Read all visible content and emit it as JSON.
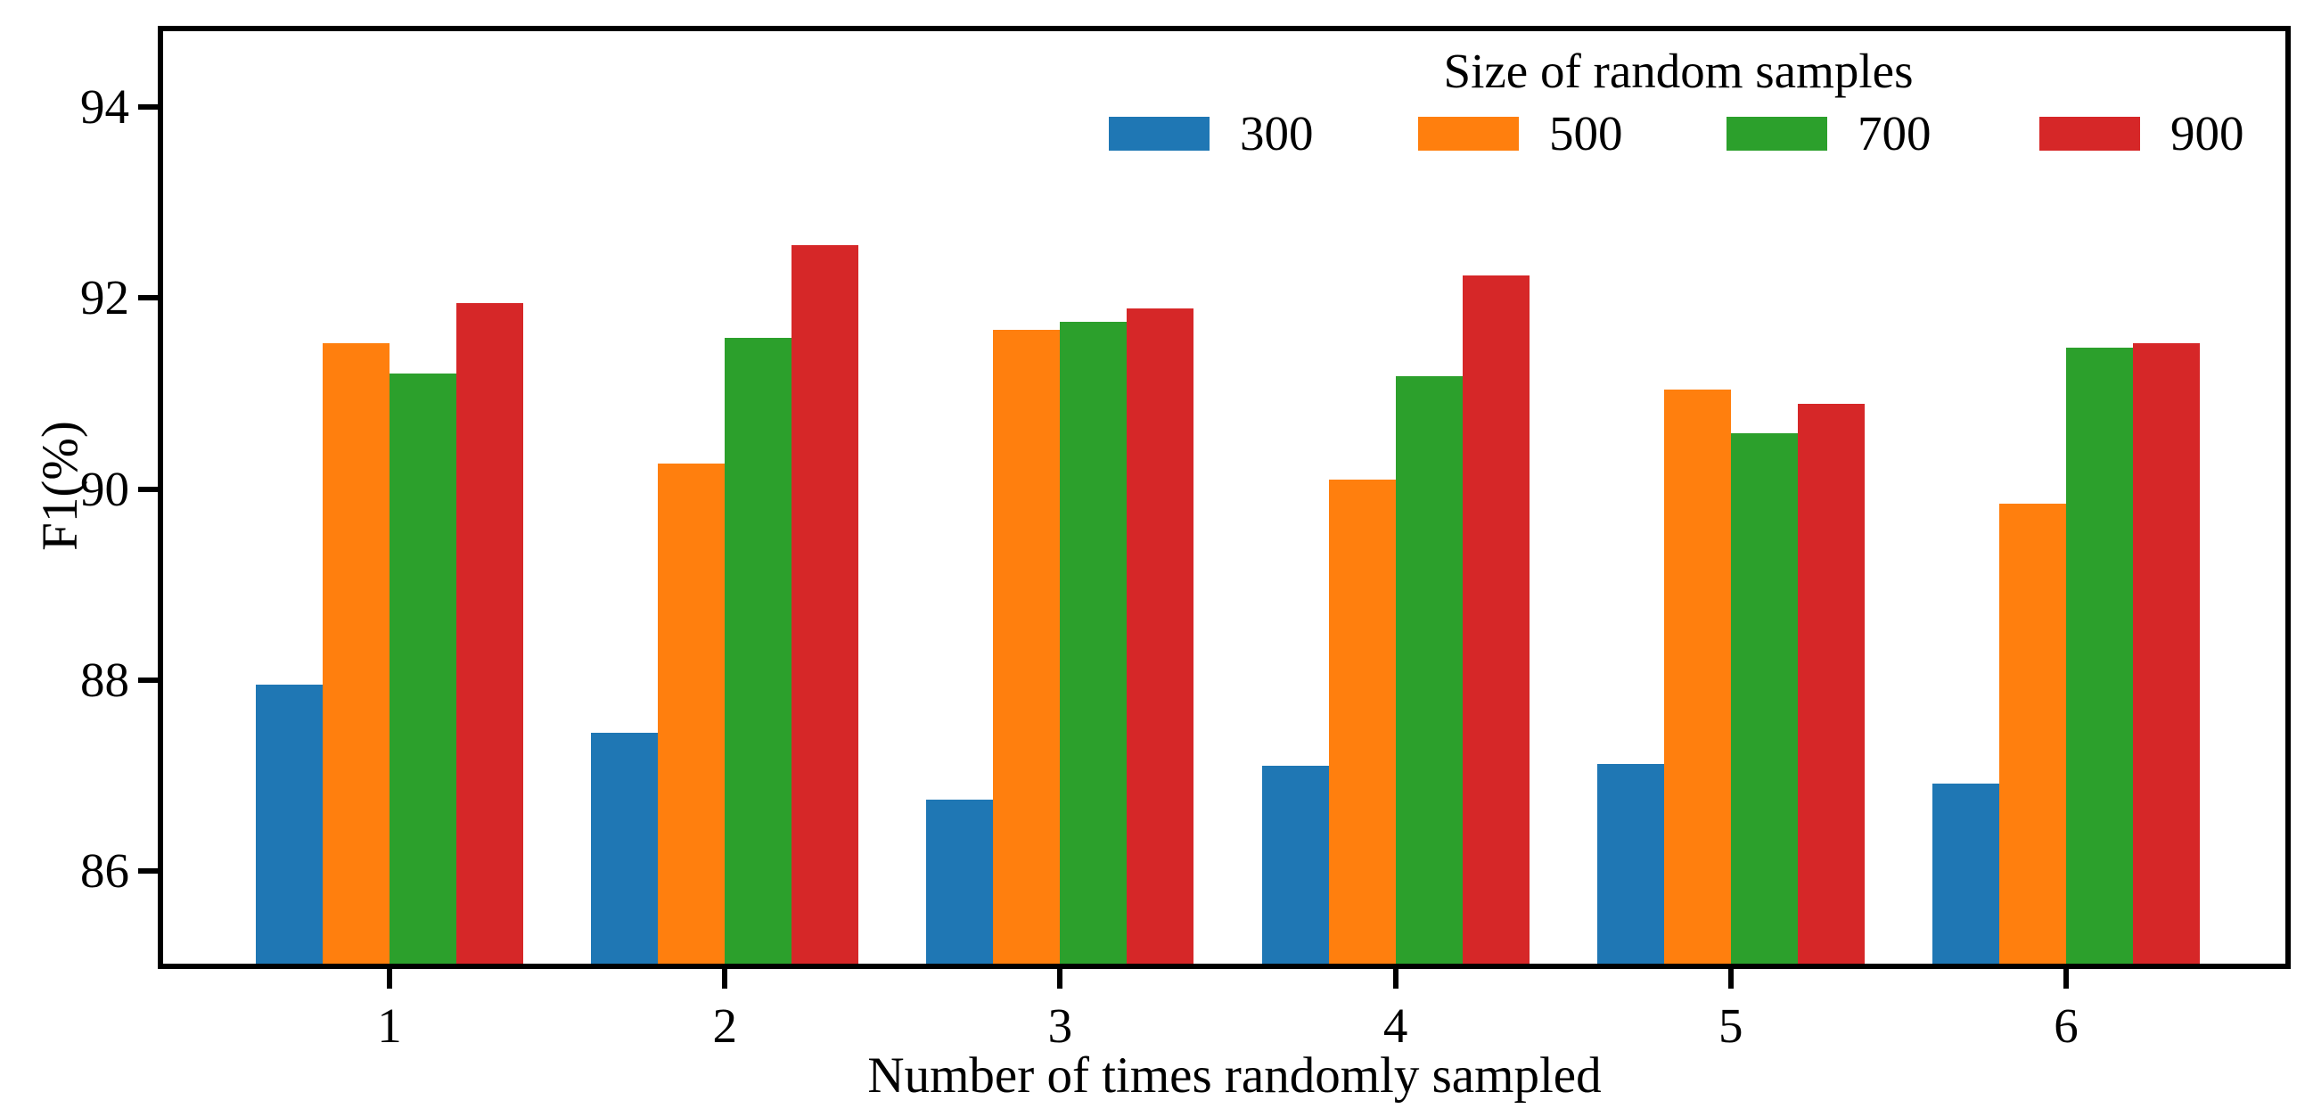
{
  "chart_data": {
    "type": "bar",
    "title": "",
    "xlabel": "Number of times randomly sampled",
    "ylabel": "F1(%)",
    "categories": [
      "1",
      "2",
      "3",
      "4",
      "5",
      "6"
    ],
    "series": [
      {
        "name": "300",
        "color": "#1f77b4",
        "values": [
          87.95,
          87.45,
          86.75,
          87.1,
          87.12,
          86.91
        ]
      },
      {
        "name": "500",
        "color": "#ff7f0e",
        "values": [
          91.53,
          90.27,
          91.67,
          90.1,
          91.04,
          89.85
        ]
      },
      {
        "name": "700",
        "color": "#2ca02c",
        "values": [
          91.21,
          91.58,
          91.75,
          91.18,
          90.58,
          91.48
        ]
      },
      {
        "name": "900",
        "color": "#d62728",
        "values": [
          91.95,
          92.55,
          91.89,
          92.24,
          90.89,
          91.53
        ]
      }
    ],
    "legend": {
      "title": "Size of random samples",
      "entries": [
        {
          "label": "300",
          "color": "#1f77b4"
        },
        {
          "label": "500",
          "color": "#ff7f0e"
        },
        {
          "label": "700",
          "color": "#2ca02c"
        },
        {
          "label": "900",
          "color": "#d62728"
        }
      ],
      "position": "upper right",
      "frame": false
    },
    "yticks": [
      86,
      88,
      90,
      92,
      94
    ],
    "ylim": [
      85,
      94.85
    ],
    "bar_width": 0.2,
    "grid": false,
    "axis_color": "#000000",
    "background": "#ffffff"
  }
}
